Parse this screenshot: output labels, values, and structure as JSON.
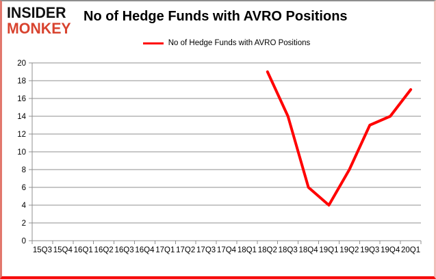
{
  "logo": {
    "line1": "INSIDER",
    "line2": "MONKEY"
  },
  "title": "No of Hedge Funds with AVRO Positions",
  "legend": {
    "label": "No of Hedge Funds with AVRO Positions",
    "color": "#ff0000"
  },
  "colors": {
    "line": "#ff0000",
    "grid": "#8f8f8f",
    "axis": "#8f8f8f",
    "text": "#000000",
    "logo_black": "#111111",
    "logo_red": "#d8432f",
    "border_bottom": "#f60d0d"
  },
  "chart_data": {
    "type": "line",
    "title": "No of Hedge Funds with AVRO Positions",
    "categories": [
      "15Q3",
      "15Q4",
      "16Q1",
      "16Q2",
      "16Q3",
      "16Q4",
      "17Q1",
      "17Q2",
      "17Q3",
      "17Q4",
      "18Q1",
      "18Q2",
      "18Q3",
      "18Q4",
      "19Q1",
      "19Q2",
      "19Q3",
      "19Q4",
      "20Q1"
    ],
    "series": [
      {
        "name": "No of Hedge Funds with AVRO Positions",
        "color": "#ff0000",
        "values": [
          null,
          null,
          null,
          null,
          null,
          null,
          null,
          null,
          null,
          null,
          null,
          19,
          14,
          6,
          4,
          8,
          13,
          14,
          17
        ]
      }
    ],
    "xlabel": "",
    "ylabel": "",
    "ylim": [
      0,
      20
    ],
    "ytick_step": 2,
    "grid": true,
    "legend_position": "top-center"
  }
}
